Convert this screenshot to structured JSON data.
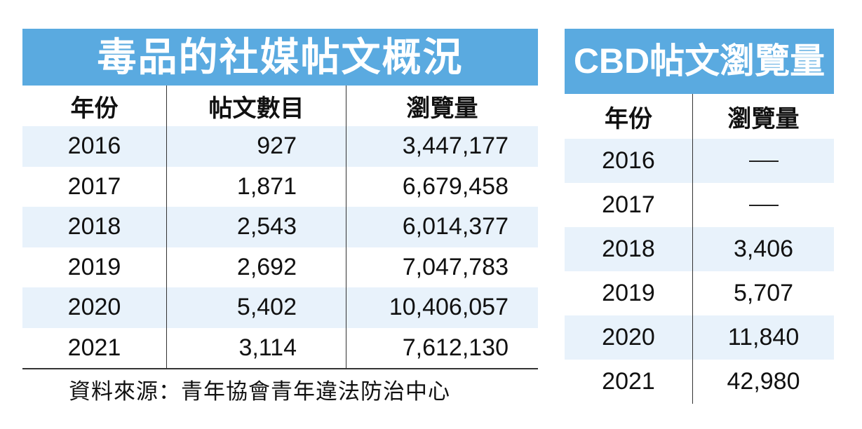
{
  "chart_data": [
    {
      "type": "table",
      "title": "毒品的社媒帖文概況",
      "columns": [
        "年份",
        "帖文數目",
        "瀏覽量"
      ],
      "rows": [
        {
          "year": "2016",
          "posts": "927",
          "views": "3,447,177"
        },
        {
          "year": "2017",
          "posts": "1,871",
          "views": "6,679,458"
        },
        {
          "year": "2018",
          "posts": "2,543",
          "views": "6,014,377"
        },
        {
          "year": "2019",
          "posts": "2,692",
          "views": "7,047,783"
        },
        {
          "year": "2020",
          "posts": "5,402",
          "views": "10,406,057"
        },
        {
          "year": "2021",
          "posts": "3,114",
          "views": "7,612,130"
        }
      ],
      "source": "資料來源：青年協會青年違法防治中心"
    },
    {
      "type": "table",
      "title": "CBD帖文瀏覽量",
      "columns": [
        "年份",
        "瀏覽量"
      ],
      "rows": [
        {
          "year": "2016",
          "views": ""
        },
        {
          "year": "2017",
          "views": ""
        },
        {
          "year": "2018",
          "views": "3,406"
        },
        {
          "year": "2019",
          "views": "5,707"
        },
        {
          "year": "2020",
          "views": "11,840"
        },
        {
          "year": "2021",
          "views": "42,980"
        }
      ]
    }
  ],
  "colors": {
    "header": "#5aaae0",
    "stripe": "#e8f2fb",
    "text": "#111111"
  }
}
